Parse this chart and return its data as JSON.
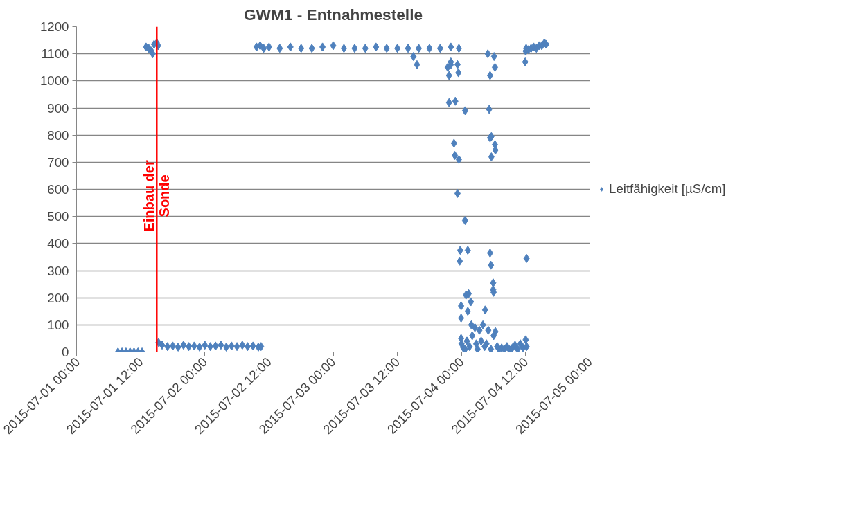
{
  "chart_data": {
    "type": "scatter",
    "title": "GWM1 - Entnahmestelle",
    "series": [
      {
        "name": "Leitfähigkeit [µS/cm]",
        "color": "#4f81bd",
        "x": [
          "2015-07-01T07:45",
          "2015-07-01T08:30",
          "2015-07-01T09:15",
          "2015-07-01T10:00",
          "2015-07-01T10:45",
          "2015-07-01T11:30",
          "2015-07-01T12:15",
          "2015-07-01T13:00",
          "2015-07-01T13:30",
          "2015-07-01T14:00",
          "2015-07-01T14:15",
          "2015-07-01T14:30",
          "2015-07-01T15:00",
          "2015-07-01T15:15",
          "2015-07-01T15:20",
          "2015-07-01T16:00",
          "2015-07-01T17:00",
          "2015-07-01T18:00",
          "2015-07-01T19:00",
          "2015-07-01T20:00",
          "2015-07-01T21:00",
          "2015-07-01T22:00",
          "2015-07-01T23:00",
          "2015-07-02T00:00",
          "2015-07-02T01:00",
          "2015-07-02T02:00",
          "2015-07-02T03:00",
          "2015-07-02T04:00",
          "2015-07-02T05:00",
          "2015-07-02T06:00",
          "2015-07-02T07:00",
          "2015-07-02T08:00",
          "2015-07-02T09:00",
          "2015-07-02T10:00",
          "2015-07-02T10:30",
          "2015-07-02T09:40",
          "2015-07-02T10:20",
          "2015-07-02T11:00",
          "2015-07-02T12:00",
          "2015-07-02T14:00",
          "2015-07-02T16:00",
          "2015-07-02T18:00",
          "2015-07-02T20:00",
          "2015-07-02T22:00",
          "2015-07-03T00:00",
          "2015-07-03T02:00",
          "2015-07-03T04:00",
          "2015-07-03T06:00",
          "2015-07-03T08:00",
          "2015-07-03T10:00",
          "2015-07-03T12:00",
          "2015-07-03T14:00",
          "2015-07-03T16:00",
          "2015-07-03T18:00",
          "2015-07-03T20:00",
          "2015-07-03T22:00",
          "2015-07-03T23:30",
          "2015-07-03T15:00",
          "2015-07-03T15:40",
          "2015-07-03T21:25",
          "2015-07-03T21:40",
          "2015-07-03T22:00",
          "2015-07-03T22:00",
          "2015-07-03T21:40",
          "2015-07-03T22:50",
          "2015-07-03T22:35",
          "2015-07-03T22:45",
          "2015-07-03T23:15",
          "2015-07-03T23:25",
          "2015-07-03T23:30",
          "2015-07-03T23:15",
          "2015-07-04T00:40",
          "2015-07-04T00:40",
          "2015-07-03T23:45",
          "2015-07-03T23:40",
          "2015-07-04T01:10",
          "2015-07-03T23:55",
          "2015-07-03T23:55",
          "2015-07-04T00:50",
          "2015-07-04T01:20",
          "2015-07-04T01:10",
          "2015-07-04T01:45",
          "2015-07-03T23:55",
          "2015-07-04T04:55",
          "2015-07-04T06:05",
          "2015-07-04T06:15",
          "2015-07-04T05:20",
          "2015-07-04T05:10",
          "2015-07-04T05:35",
          "2015-07-04T05:20",
          "2015-07-04T06:15",
          "2015-07-04T06:20",
          "2015-07-04T05:35",
          "2015-07-04T05:20",
          "2015-07-04T05:30",
          "2015-07-04T05:55",
          "2015-07-04T05:55",
          "2015-07-04T06:00",
          "2015-07-04T04:25",
          "2015-07-04T00:00",
          "2015-07-04T00:20",
          "2015-07-04T00:40",
          "2015-07-04T01:00",
          "2015-07-04T01:30",
          "2015-07-04T01:50",
          "2015-07-04T02:00",
          "2015-07-04T02:30",
          "2015-07-04T02:45",
          "2015-07-04T03:00",
          "2015-07-04T03:20",
          "2015-07-04T03:40",
          "2015-07-04T04:00",
          "2015-07-04T04:20",
          "2015-07-04T04:40",
          "2015-07-04T05:00",
          "2015-07-04T05:30",
          "2015-07-04T06:00",
          "2015-07-04T06:20",
          "2015-07-04T06:40",
          "2015-07-04T07:00",
          "2015-07-04T07:30",
          "2015-07-04T08:00",
          "2015-07-04T08:30",
          "2015-07-04T09:00",
          "2015-07-04T09:30",
          "2015-07-04T10:00",
          "2015-07-04T10:30",
          "2015-07-04T11:00",
          "2015-07-04T11:30",
          "2015-07-04T12:00",
          "2015-07-04T12:10",
          "2015-07-04T11:55",
          "2015-07-04T12:00",
          "2015-07-04T12:05",
          "2015-07-04T12:10",
          "2015-07-04T12:30",
          "2015-07-04T13:00",
          "2015-07-04T13:30",
          "2015-07-04T14:00",
          "2015-07-04T14:30",
          "2015-07-04T15:00",
          "2015-07-04T15:30",
          "2015-07-04T15:50"
        ],
        "values": [
          0,
          0,
          0,
          0,
          0,
          0,
          0,
          1125,
          1120,
          1110,
          1100,
          1135,
          1140,
          1130,
          35,
          25,
          20,
          22,
          18,
          25,
          20,
          22,
          18,
          25,
          20,
          22,
          25,
          18,
          22,
          20,
          25,
          20,
          22,
          18,
          20,
          1125,
          1130,
          1120,
          1125,
          1120,
          1125,
          1120,
          1120,
          1125,
          1130,
          1120,
          1120,
          1120,
          1125,
          1120,
          1120,
          1120,
          1120,
          1120,
          1120,
          1125,
          1120,
          1090,
          1060,
          1050,
          1020,
          1070,
          1060,
          920,
          925,
          770,
          725,
          1060,
          1030,
          710,
          585,
          890,
          485,
          375,
          335,
          375,
          170,
          125,
          210,
          215,
          150,
          185,
          50,
          1100,
          1090,
          1050,
          1020,
          895,
          795,
          790,
          765,
          745,
          720,
          365,
          320,
          255,
          230,
          220,
          155,
          30,
          15,
          10,
          40,
          20,
          100,
          60,
          90,
          30,
          10,
          80,
          40,
          100,
          20,
          30,
          80,
          10,
          60,
          75,
          20,
          10,
          15,
          10,
          20,
          8,
          15,
          25,
          10,
          30,
          15,
          45,
          20,
          1070,
          1110,
          1120,
          345,
          1115,
          1120,
          1125,
          1120,
          1130,
          1130,
          1140,
          1135
        ]
      }
    ],
    "xlim": [
      "2015-07-01T00:00",
      "2015-07-05T00:00"
    ],
    "xticks": [
      {
        "value": "2015-07-01T00:00",
        "label": "2015-07-01 00:00"
      },
      {
        "value": "2015-07-01T12:00",
        "label": "2015-07-01 12:00"
      },
      {
        "value": "2015-07-02T00:00",
        "label": "2015-07-02 00:00"
      },
      {
        "value": "2015-07-02T12:00",
        "label": "2015-07-02 12:00"
      },
      {
        "value": "2015-07-03T00:00",
        "label": "2015-07-03 00:00"
      },
      {
        "value": "2015-07-03T12:00",
        "label": "2015-07-03 12:00"
      },
      {
        "value": "2015-07-04T00:00",
        "label": "2015-07-04 00:00"
      },
      {
        "value": "2015-07-04T12:00",
        "label": "2015-07-04 12:00"
      },
      {
        "value": "2015-07-05T00:00",
        "label": "2015-07-05 00:00"
      }
    ],
    "ylim": [
      0,
      1200
    ],
    "yticks": [
      0,
      100,
      200,
      300,
      400,
      500,
      600,
      700,
      800,
      900,
      1000,
      1100,
      1200
    ],
    "ref_lines": [
      {
        "axis": "x",
        "value": "2015-07-01T15:00",
        "label": "Einbau der Sonde",
        "color": "#ff0000"
      }
    ],
    "grid": "y",
    "legend": "right",
    "marker": "diamond"
  }
}
